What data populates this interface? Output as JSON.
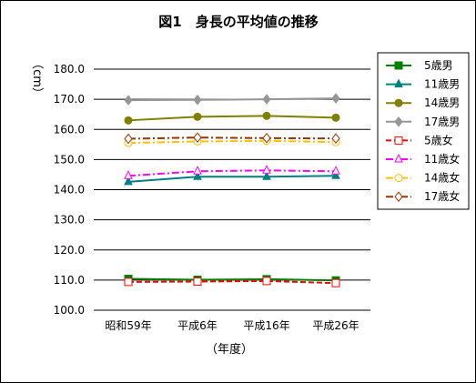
{
  "chart_data": {
    "type": "line",
    "title": "図1　身長の平均値の推移",
    "ylabel": "（cm）",
    "xlabel": "（年度）",
    "categories": [
      "昭和59年",
      "平成6年",
      "平成16年",
      "平成26年"
    ],
    "ylim": [
      100.0,
      180.0
    ],
    "yticks": [
      "100.0",
      "110.0",
      "120.0",
      "130.0",
      "140.0",
      "150.0",
      "160.0",
      "170.0",
      "180.0"
    ],
    "grid": true,
    "legend_position": "right",
    "series": [
      {
        "name": "5歳男",
        "values": [
          110.4,
          110.1,
          110.3,
          109.9
        ],
        "color": "#008000",
        "marker": "square-filled",
        "dash": "solid"
      },
      {
        "name": "11歳男",
        "values": [
          142.6,
          144.3,
          144.3,
          144.6
        ],
        "color": "#008080",
        "marker": "triangle-filled",
        "dash": "solid"
      },
      {
        "name": "14歳男",
        "values": [
          163.0,
          164.2,
          164.5,
          163.9
        ],
        "color": "#808000",
        "marker": "circle-filled",
        "dash": "solid"
      },
      {
        "name": "17歳男",
        "values": [
          169.7,
          169.8,
          170.0,
          170.3
        ],
        "color": "#969696",
        "marker": "diamond-filled",
        "dash": "solid"
      },
      {
        "name": "5歳女",
        "values": [
          109.4,
          109.5,
          109.7,
          109.0
        ],
        "color": "#ff0000",
        "marker": "square-open",
        "dash": "dash"
      },
      {
        "name": "11歳女",
        "values": [
          144.6,
          146.1,
          146.4,
          146.1
        ],
        "color": "#ff00ff",
        "marker": "triangle-open",
        "dash": "dashdot"
      },
      {
        "name": "14歳女",
        "values": [
          155.5,
          156.0,
          156.2,
          155.8
        ],
        "color": "#ffc000",
        "marker": "circle-open",
        "dash": "dashdot"
      },
      {
        "name": "17歳女",
        "values": [
          156.9,
          157.3,
          157.1,
          157.0
        ],
        "color": "#993300",
        "marker": "diamond-open",
        "dash": "dashdot"
      }
    ]
  }
}
